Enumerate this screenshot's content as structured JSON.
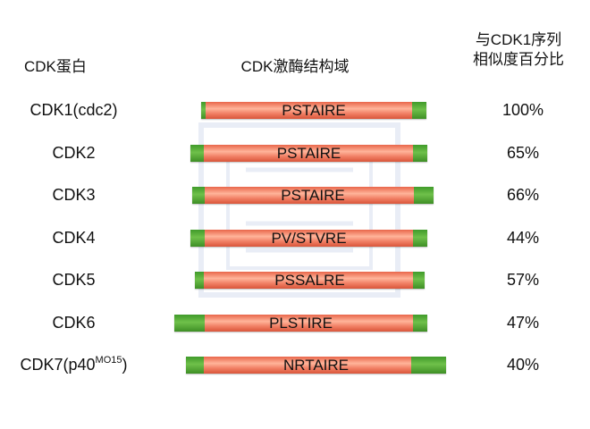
{
  "headers": {
    "cdk_protein": "CDK蛋白",
    "kinase_domain": "CDK激酶结构域",
    "similarity_line1": "与CDK1序列",
    "similarity_line2": "相似度百分比"
  },
  "rows": [
    {
      "name": "CDK1(cdc2)",
      "name_sup": "",
      "motif": "PSTAIRE",
      "similarity": "100%"
    },
    {
      "name": "CDK2",
      "name_sup": "",
      "motif": "PSTAIRE",
      "similarity": "65%"
    },
    {
      "name": "CDK3",
      "name_sup": "",
      "motif": "PSTAIRE",
      "similarity": "66%"
    },
    {
      "name": "CDK4",
      "name_sup": "",
      "motif": "PV/STVRE",
      "similarity": "44%"
    },
    {
      "name": "CDK5",
      "name_sup": "",
      "motif": "PSSALRE",
      "similarity": "57%"
    },
    {
      "name": "CDK6",
      "name_sup": "",
      "motif": "PLSTIRE",
      "similarity": "47%"
    },
    {
      "name": "CDK7(p40",
      "name_sup": "MO15",
      "name_suffix": ")",
      "motif": "NRTAIRE",
      "similarity": "40%"
    }
  ],
  "colors": {
    "domain_core": "#ef7a5e",
    "domain_ends": "#4fa832"
  }
}
